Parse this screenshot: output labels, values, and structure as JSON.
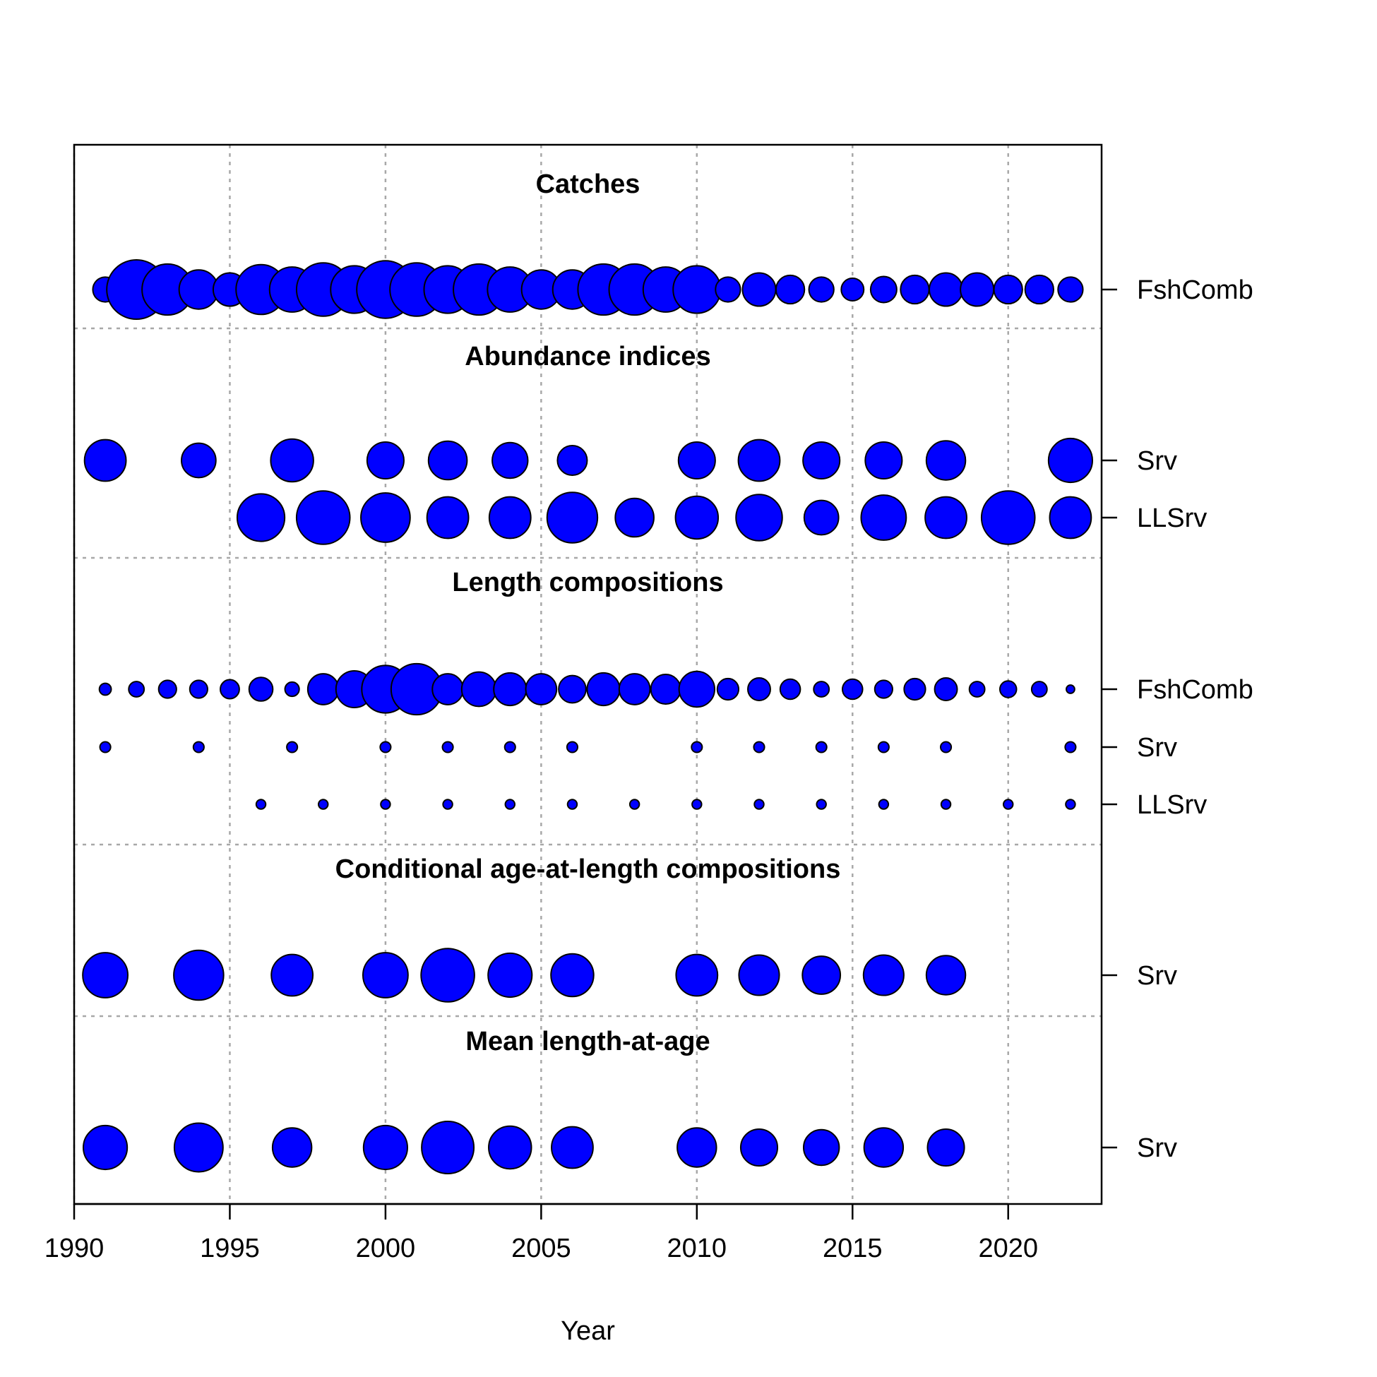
{
  "chart_data": {
    "type": "scatter",
    "xlabel": "Year",
    "xlim": [
      1990,
      2023
    ],
    "xticks": [
      "1990",
      "1995",
      "2000",
      "2005",
      "2010",
      "2015",
      "2020"
    ],
    "point_color": "#0000FF",
    "point_outline": "#000000",
    "grid": true,
    "sections": [
      {
        "title": "Catches",
        "rows": [
          {
            "label": "FshComb",
            "x": [
              1991,
              1992,
              1993,
              1994,
              1995,
              1996,
              1997,
              1998,
              1999,
              2000,
              2001,
              2002,
              2003,
              2004,
              2005,
              2006,
              2007,
              2008,
              2009,
              2010,
              2011,
              2012,
              2013,
              2014,
              2015,
              2016,
              2017,
              2018,
              2019,
              2020,
              2021,
              2022
            ],
            "size": [
              0.42,
              1.0,
              0.86,
              0.66,
              0.56,
              0.84,
              0.76,
              0.9,
              0.8,
              0.97,
              0.9,
              0.8,
              0.86,
              0.76,
              0.66,
              0.66,
              0.86,
              0.86,
              0.76,
              0.8,
              0.42,
              0.56,
              0.48,
              0.42,
              0.38,
              0.44,
              0.48,
              0.56,
              0.56,
              0.48,
              0.48,
              0.42
            ]
          }
        ]
      },
      {
        "title": "Abundance indices",
        "rows": [
          {
            "label": "Srv",
            "x": [
              1991,
              1994,
              1997,
              2000,
              2002,
              2004,
              2006,
              2010,
              2012,
              2014,
              2016,
              2018,
              2022
            ],
            "size": [
              0.7,
              0.58,
              0.72,
              0.62,
              0.65,
              0.6,
              0.5,
              0.62,
              0.7,
              0.62,
              0.62,
              0.66,
              0.74
            ]
          },
          {
            "label": "LLSrv",
            "x": [
              1996,
              1998,
              2000,
              2002,
              2004,
              2006,
              2008,
              2010,
              2012,
              2014,
              2016,
              2018,
              2020,
              2022
            ],
            "size": [
              0.8,
              0.9,
              0.83,
              0.7,
              0.7,
              0.85,
              0.65,
              0.72,
              0.78,
              0.58,
              0.76,
              0.7,
              0.9,
              0.7
            ]
          }
        ]
      },
      {
        "title": "Length compositions",
        "rows": [
          {
            "label": "FshComb",
            "x": [
              1991,
              1992,
              1993,
              1994,
              1995,
              1996,
              1997,
              1998,
              1999,
              2000,
              2001,
              2002,
              2003,
              2004,
              2005,
              2006,
              2007,
              2008,
              2009,
              2010,
              2011,
              2012,
              2013,
              2014,
              2015,
              2016,
              2017,
              2018,
              2019,
              2020,
              2021,
              2022
            ],
            "size": [
              0.2,
              0.26,
              0.3,
              0.3,
              0.32,
              0.4,
              0.24,
              0.52,
              0.62,
              0.8,
              0.86,
              0.52,
              0.58,
              0.55,
              0.52,
              0.46,
              0.55,
              0.52,
              0.5,
              0.6,
              0.36,
              0.38,
              0.34,
              0.26,
              0.34,
              0.3,
              0.36,
              0.38,
              0.26,
              0.28,
              0.26,
              0.14
            ]
          },
          {
            "label": "Srv",
            "x": [
              1991,
              1994,
              1997,
              2000,
              2002,
              2004,
              2006,
              2010,
              2012,
              2014,
              2016,
              2018,
              2022
            ],
            "size": [
              0.18,
              0.18,
              0.18,
              0.18,
              0.18,
              0.18,
              0.18,
              0.18,
              0.18,
              0.18,
              0.18,
              0.18,
              0.18
            ]
          },
          {
            "label": "LLSrv",
            "x": [
              1996,
              1998,
              2000,
              2002,
              2004,
              2006,
              2008,
              2010,
              2012,
              2014,
              2016,
              2018,
              2020,
              2022
            ],
            "size": [
              0.16,
              0.16,
              0.16,
              0.16,
              0.16,
              0.16,
              0.16,
              0.16,
              0.16,
              0.16,
              0.16,
              0.16,
              0.16,
              0.16
            ]
          }
        ]
      },
      {
        "title": "Conditional age-at-length compositions",
        "rows": [
          {
            "label": "Srv",
            "x": [
              1991,
              1994,
              1997,
              2000,
              2002,
              2004,
              2006,
              2010,
              2012,
              2014,
              2016,
              2018
            ],
            "size": [
              0.76,
              0.84,
              0.7,
              0.76,
              0.9,
              0.74,
              0.72,
              0.7,
              0.68,
              0.64,
              0.68,
              0.66
            ]
          }
        ]
      },
      {
        "title": "Mean length-at-age",
        "rows": [
          {
            "label": "Srv",
            "x": [
              1991,
              1994,
              1997,
              2000,
              2002,
              2004,
              2006,
              2010,
              2012,
              2014,
              2016,
              2018
            ],
            "size": [
              0.74,
              0.82,
              0.66,
              0.74,
              0.88,
              0.72,
              0.7,
              0.66,
              0.62,
              0.6,
              0.66,
              0.62
            ]
          }
        ]
      }
    ]
  }
}
